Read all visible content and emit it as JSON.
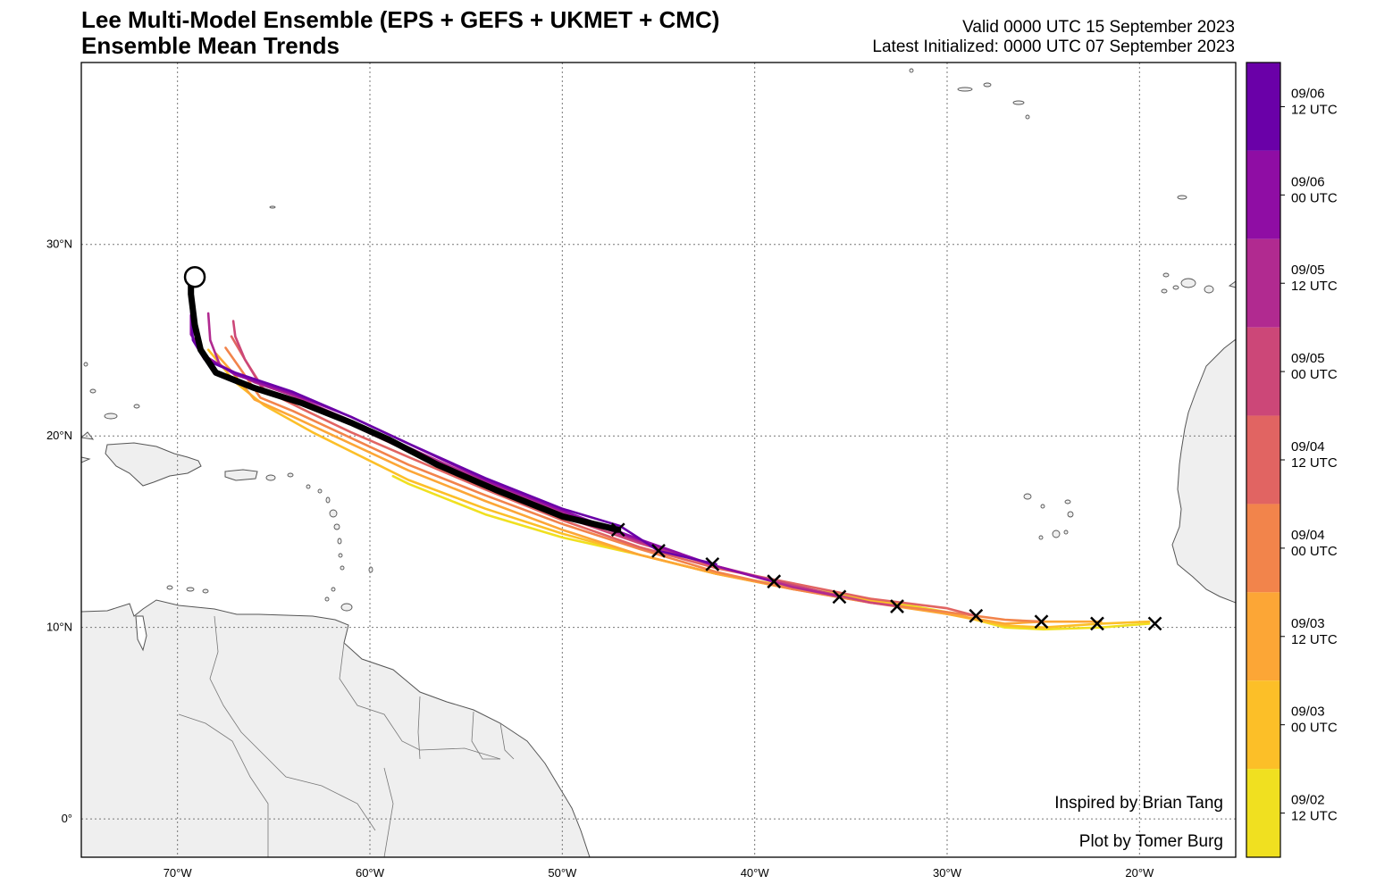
{
  "title": {
    "line1": "Lee Multi-Model Ensemble (EPS + GEFS + UKMET + CMC)",
    "line2": "Ensemble Mean Trends"
  },
  "header_right": {
    "valid": "Valid 0000 UTC 15 September 2023",
    "initialized": "Latest Initialized: 0000 UTC 07 September 2023"
  },
  "map": {
    "lon_range": [
      -75,
      -15
    ],
    "lat_range": [
      -2,
      39.5
    ],
    "lon_ticks": [
      {
        "value": -70,
        "label": "70°W"
      },
      {
        "value": -60,
        "label": "60°W"
      },
      {
        "value": -50,
        "label": "50°W"
      },
      {
        "value": -40,
        "label": "40°W"
      },
      {
        "value": -30,
        "label": "30°W"
      },
      {
        "value": -20,
        "label": "20°W"
      }
    ],
    "lat_ticks": [
      {
        "value": 0,
        "label": "0°"
      },
      {
        "value": 10,
        "label": "10°N"
      },
      {
        "value": 20,
        "label": "20°N"
      },
      {
        "value": 30,
        "label": "30°N"
      }
    ],
    "land_color": "#efefef",
    "coast_color": "#555555",
    "grid_color": "#777777"
  },
  "credits": {
    "inspired": "Inspired by Brian Tang",
    "plot_by": "Plot by Tomer Burg"
  },
  "colorbar": {
    "labels": [
      {
        "date": "09/06",
        "time": "12 UTC",
        "color": "#6a00a8"
      },
      {
        "date": "09/06",
        "time": "00 UTC",
        "color": "#8f0da4"
      },
      {
        "date": "09/05",
        "time": "12 UTC",
        "color": "#b12a90"
      },
      {
        "date": "09/05",
        "time": "00 UTC",
        "color": "#cc4778"
      },
      {
        "date": "09/04",
        "time": "12 UTC",
        "color": "#e16462"
      },
      {
        "date": "09/04",
        "time": "00 UTC",
        "color": "#f2844b"
      },
      {
        "date": "09/03",
        "time": "12 UTC",
        "color": "#fca636"
      },
      {
        "date": "09/03",
        "time": "00 UTC",
        "color": "#fcbf28"
      },
      {
        "date": "09/02",
        "time": "12 UTC",
        "color": "#f0e020"
      }
    ]
  },
  "chart_data": {
    "type": "map",
    "title": "Lee Multi-Model Ensemble (EPS + GEFS + UKMET + CMC) — Ensemble Mean Trends",
    "tracks": [
      {
        "name": "09/02 12 UTC",
        "color": "#f0e020",
        "points": [
          [
            -19.5,
            10.2
          ],
          [
            -22,
            10.0
          ],
          [
            -25,
            9.9
          ],
          [
            -27,
            10.0
          ],
          [
            -30,
            10.8
          ],
          [
            -34,
            11.5
          ],
          [
            -38,
            12.1
          ],
          [
            -42,
            12.8
          ],
          [
            -46,
            13.8
          ],
          [
            -50,
            14.7
          ],
          [
            -54,
            15.9
          ],
          [
            -58,
            17.5
          ],
          [
            -58.8,
            17.9
          ]
        ]
      },
      {
        "name": "09/03 00 UTC",
        "color": "#fcbf28",
        "points": [
          [
            -19.5,
            10.3
          ],
          [
            -22,
            10.2
          ],
          [
            -25,
            10.0
          ],
          [
            -27,
            10.1
          ],
          [
            -30,
            10.7
          ],
          [
            -34,
            11.4
          ],
          [
            -38,
            12.0
          ],
          [
            -42,
            12.8
          ],
          [
            -46,
            13.8
          ],
          [
            -50,
            14.9
          ],
          [
            -54,
            16.2
          ],
          [
            -58,
            17.7
          ],
          [
            -60,
            18.7
          ],
          [
            -63,
            20.2
          ],
          [
            -65.5,
            21.6
          ],
          [
            -67,
            22.8
          ],
          [
            -68.4,
            24.5
          ]
        ]
      },
      {
        "name": "09/03 12 UTC",
        "color": "#fca636",
        "points": [
          [
            -22,
            10.3
          ],
          [
            -25,
            10.3
          ],
          [
            -27,
            10.2
          ],
          [
            -30,
            10.7
          ],
          [
            -34,
            11.3
          ],
          [
            -38,
            12.0
          ],
          [
            -42,
            12.8
          ],
          [
            -46,
            13.8
          ],
          [
            -50,
            15.1
          ],
          [
            -54,
            16.6
          ],
          [
            -58,
            18.2
          ],
          [
            -61,
            19.6
          ],
          [
            -64,
            21.0
          ],
          [
            -66,
            21.9
          ],
          [
            -67.3,
            23.5
          ],
          [
            -68,
            24.3
          ]
        ]
      },
      {
        "name": "09/04 00 UTC",
        "color": "#f2844b",
        "points": [
          [
            -25,
            10.3
          ],
          [
            -27,
            10.4
          ],
          [
            -30,
            10.8
          ],
          [
            -34,
            11.3
          ],
          [
            -38,
            12.0
          ],
          [
            -42,
            12.9
          ],
          [
            -46,
            14.1
          ],
          [
            -50,
            15.4
          ],
          [
            -54,
            16.9
          ],
          [
            -58,
            18.5
          ],
          [
            -61,
            19.9
          ],
          [
            -64,
            21.3
          ],
          [
            -65.7,
            22.0
          ],
          [
            -66.8,
            23.6
          ],
          [
            -67.5,
            24.6
          ]
        ]
      },
      {
        "name": "09/04 12 UTC",
        "color": "#e16462",
        "points": [
          [
            -28.5,
            10.6
          ],
          [
            -30,
            11.0
          ],
          [
            -34,
            11.5
          ],
          [
            -38,
            12.3
          ],
          [
            -42,
            13.1
          ],
          [
            -46,
            14.2
          ],
          [
            -50,
            15.6
          ],
          [
            -54,
            17.2
          ],
          [
            -58,
            18.9
          ],
          [
            -61,
            20.2
          ],
          [
            -63.5,
            21.4
          ],
          [
            -65.5,
            22.4
          ],
          [
            -66.5,
            24.0
          ],
          [
            -67.2,
            25.2
          ]
        ]
      },
      {
        "name": "09/05 00 UTC",
        "color": "#cc4778",
        "points": [
          [
            -32.5,
            11.1
          ],
          [
            -34,
            11.3
          ],
          [
            -38,
            12.2
          ],
          [
            -42,
            13.2
          ],
          [
            -46,
            14.4
          ],
          [
            -50,
            15.8
          ],
          [
            -54,
            17.4
          ],
          [
            -58,
            19.2
          ],
          [
            -61,
            20.6
          ],
          [
            -64,
            21.8
          ],
          [
            -65.6,
            22.5
          ],
          [
            -66.5,
            24.0
          ],
          [
            -67,
            25.2
          ],
          [
            -67.1,
            26.0
          ]
        ]
      },
      {
        "name": "09/05 12 UTC",
        "color": "#b12a90",
        "points": [
          [
            -35.5,
            11.6
          ],
          [
            -38,
            12.1
          ],
          [
            -42,
            13.2
          ],
          [
            -46,
            14.5
          ],
          [
            -50,
            16.0
          ],
          [
            -54,
            17.6
          ],
          [
            -58,
            19.4
          ],
          [
            -61,
            20.8
          ],
          [
            -64,
            22.1
          ],
          [
            -66,
            22.8
          ],
          [
            -67.8,
            23.7
          ],
          [
            -68.3,
            25.0
          ],
          [
            -68.4,
            26.4
          ]
        ]
      },
      {
        "name": "09/06 00 UTC",
        "color": "#8f0da4",
        "points": [
          [
            -39,
            12.4
          ],
          [
            -42,
            13.2
          ],
          [
            -46,
            14.6
          ],
          [
            -50,
            16.1
          ],
          [
            -54,
            17.7
          ],
          [
            -58,
            19.6
          ],
          [
            -61,
            21.0
          ],
          [
            -64,
            22.2
          ],
          [
            -67,
            23.2
          ],
          [
            -68.6,
            24.2
          ],
          [
            -69.3,
            25.3
          ],
          [
            -69.3,
            26.3
          ]
        ]
      },
      {
        "name": "09/06 12 UTC",
        "color": "#6a00a8",
        "points": [
          [
            -42,
            13.3
          ],
          [
            -45,
            14.0
          ],
          [
            -47,
            15.3
          ],
          [
            -50,
            16.2
          ],
          [
            -54,
            17.8
          ],
          [
            -58,
            19.6
          ],
          [
            -61,
            21.0
          ],
          [
            -64,
            22.3
          ],
          [
            -67,
            23.3
          ],
          [
            -68.6,
            24.0
          ],
          [
            -69.2,
            25.0
          ],
          [
            -69.3,
            26.7
          ]
        ]
      },
      {
        "name": "Latest (09/07 00 UTC)",
        "color": "#000000",
        "points": [
          [
            -47.1,
            15.1
          ],
          [
            -50,
            15.8
          ],
          [
            -53.5,
            17.2
          ],
          [
            -56.5,
            18.5
          ],
          [
            -59,
            19.8
          ],
          [
            -61,
            20.7
          ],
          [
            -63.5,
            21.7
          ],
          [
            -66,
            22.5
          ],
          [
            -68,
            23.3
          ],
          [
            -68.8,
            24.5
          ],
          [
            -69.1,
            25.8
          ],
          [
            -69.3,
            27.4
          ],
          [
            -69.3,
            28.2
          ]
        ]
      }
    ],
    "initial_positions": [
      [
        -19.2,
        10.2
      ],
      [
        -22.2,
        10.2
      ],
      [
        -25.1,
        10.3
      ],
      [
        -28.5,
        10.6
      ],
      [
        -32.6,
        11.1
      ],
      [
        -35.6,
        11.6
      ],
      [
        -39.0,
        12.4
      ],
      [
        -42.2,
        13.3
      ],
      [
        -45.0,
        14.0
      ],
      [
        -47.1,
        15.1
      ]
    ],
    "forecast_end": [
      -69.1,
      28.3
    ]
  }
}
